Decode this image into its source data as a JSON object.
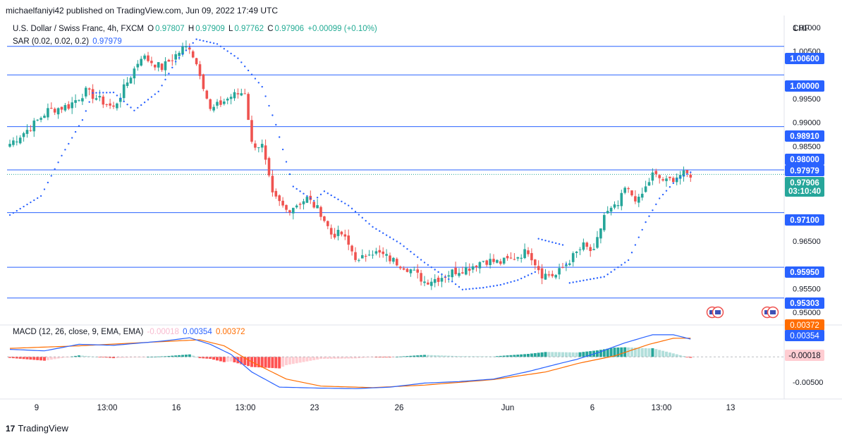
{
  "publisher": "michaelfaniyi42 published on TradingView.com, Jun 09, 2022 17:49 UTC",
  "header": {
    "symbol": "U.S. Dollar / Swiss Franc, 4h, FXCM",
    "o_label": "O",
    "o": "0.97807",
    "h_label": "H",
    "h": "0.97909",
    "l_label": "L",
    "l": "0.97762",
    "c_label": "C",
    "c": "0.97906",
    "change": "+0.00099 (+0.10%)",
    "sar_label": "SAR (0.02, 0.02, 0.2)",
    "sar_value": "0.97979"
  },
  "macd_header": {
    "label": "MACD (12, 26, close, 9, EMA, EMA)",
    "hist": "-0.00018",
    "macd": "0.00354",
    "signal": "0.00372"
  },
  "currency": "CHF",
  "footer": {
    "logo": "17",
    "brand": "TradingView"
  },
  "colors": {
    "up": "#26a69a",
    "down": "#ef5350",
    "level": "#2962ff",
    "sar": "#2962ff",
    "macd": "#2962ff",
    "signal": "#ff6d00",
    "hist_up_strong": "#26a69a",
    "hist_up_weak": "#b2dfdb",
    "hist_down_strong": "#ff5252",
    "hist_down_weak": "#ffcdd2"
  },
  "chart_data": {
    "type": "candlestick",
    "price_axis_ticks": [
      "1.01000",
      "1.00500",
      "0.99500",
      "0.99000",
      "0.98500",
      "0.98000",
      "0.97500",
      "0.96500",
      "0.95500",
      "0.95000"
    ],
    "price_ylim": [
      0.9475,
      1.0125
    ],
    "horizontal_levels": [
      "1.00600",
      "1.00000",
      "0.98910",
      "0.98000",
      "0.97100",
      "0.95950",
      "0.95303"
    ],
    "highlighted_labels": [
      {
        "text": "1.00600",
        "value": 1.006
      },
      {
        "text": "1.00000",
        "value": 1.0
      },
      {
        "text": "0.98910",
        "value": 0.9891
      },
      {
        "text": "0.98000",
        "value": 0.98
      },
      {
        "text": "0.97979",
        "value": 0.97979
      },
      {
        "text": "0.97906",
        "value": 0.97906
      },
      {
        "text": "03:10:40",
        "value": 0.97906
      },
      {
        "text": "0.97100",
        "value": 0.971
      },
      {
        "text": "0.95950",
        "value": 0.9595
      },
      {
        "text": "0.95303",
        "value": 0.95303
      }
    ],
    "last_price": 0.97906,
    "x_ticks": [
      "9",
      "13:00",
      "16",
      "13:00",
      "23",
      "26",
      "Jun",
      "6",
      "13:00",
      "13"
    ],
    "macd_axis_ticks": [
      "-0.00500"
    ],
    "macd_ylim": [
      -0.0078,
      0.0062
    ],
    "macd_labels": [
      {
        "text": "0.00372",
        "value": 0.00372,
        "series": "signal"
      },
      {
        "text": "0.00354",
        "value": 0.00354,
        "series": "macd"
      },
      {
        "text": "-0.00018",
        "value": -0.00018,
        "series": "hist"
      }
    ],
    "close_anchors": [
      [
        0,
        0.9855
      ],
      [
        6,
        0.989
      ],
      [
        11,
        0.9925
      ],
      [
        17,
        0.9935
      ],
      [
        22,
        0.9965
      ],
      [
        30,
        0.993
      ],
      [
        34,
        0.9985
      ],
      [
        38,
        1.004
      ],
      [
        44,
        1.0015
      ],
      [
        50,
        1.0055
      ],
      [
        52,
        1.006
      ],
      [
        55,
        1.0005
      ],
      [
        58,
        0.9925
      ],
      [
        64,
        0.9955
      ],
      [
        68,
        0.9965
      ],
      [
        70,
        0.9855
      ],
      [
        73,
        0.985
      ],
      [
        76,
        0.9745
      ],
      [
        80,
        0.9715
      ],
      [
        86,
        0.974
      ],
      [
        90,
        0.971
      ],
      [
        93,
        0.9665
      ],
      [
        96,
        0.9665
      ],
      [
        101,
        0.9605
      ],
      [
        104,
        0.963
      ],
      [
        108,
        0.962
      ],
      [
        112,
        0.9605
      ],
      [
        116,
        0.959
      ],
      [
        120,
        0.9565
      ],
      [
        124,
        0.9572
      ],
      [
        128,
        0.9585
      ],
      [
        133,
        0.9595
      ],
      [
        137,
        0.961
      ],
      [
        142,
        0.9605
      ],
      [
        146,
        0.9615
      ],
      [
        150,
        0.963
      ],
      [
        154,
        0.958
      ],
      [
        158,
        0.9578
      ],
      [
        162,
        0.961
      ],
      [
        166,
        0.964
      ],
      [
        169,
        0.9625
      ],
      [
        172,
        0.9705
      ],
      [
        176,
        0.9725
      ],
      [
        178,
        0.976
      ],
      [
        182,
        0.9735
      ],
      [
        186,
        0.979
      ],
      [
        190,
        0.9775
      ],
      [
        194,
        0.979
      ],
      [
        197,
        0.979
      ]
    ],
    "sar_anchors": [
      [
        0,
        0.9705
      ],
      [
        9,
        0.9745
      ],
      [
        15,
        0.983
      ],
      [
        21,
        0.9905
      ],
      [
        24,
        0.9962
      ],
      [
        30,
        0.9963
      ],
      [
        36,
        0.9925
      ],
      [
        43,
        0.9965
      ],
      [
        48,
        1.0028
      ],
      [
        54,
        1.0075
      ],
      [
        60,
        1.0065
      ],
      [
        66,
        1.0035
      ],
      [
        73,
        0.9975
      ],
      [
        77,
        0.9895
      ],
      [
        82,
        0.9765
      ],
      [
        88,
        0.9735
      ],
      [
        91,
        0.9755
      ],
      [
        98,
        0.9725
      ],
      [
        105,
        0.968
      ],
      [
        113,
        0.9645
      ],
      [
        120,
        0.9605
      ],
      [
        128,
        0.9565
      ],
      [
        131,
        0.9548
      ],
      [
        137,
        0.9552
      ],
      [
        142,
        0.9558
      ],
      [
        147,
        0.9568
      ],
      [
        152,
        0.9585
      ],
      [
        153,
        0.9655
      ],
      [
        160,
        0.9642
      ],
      [
        162,
        0.9562
      ],
      [
        172,
        0.9575
      ],
      [
        179,
        0.961
      ],
      [
        184,
        0.969
      ],
      [
        188,
        0.974
      ],
      [
        193,
        0.978
      ],
      [
        197,
        0.9795
      ]
    ],
    "macd_anchors": [
      [
        0,
        0.0015
      ],
      [
        10,
        0.0012
      ],
      [
        20,
        0.0025
      ],
      [
        30,
        0.0023
      ],
      [
        45,
        0.0032
      ],
      [
        52,
        0.0038
      ],
      [
        58,
        0.0025
      ],
      [
        64,
        0.0005
      ],
      [
        70,
        -0.003
      ],
      [
        78,
        -0.006
      ],
      [
        90,
        -0.0062
      ],
      [
        100,
        -0.0063
      ],
      [
        110,
        -0.006
      ],
      [
        120,
        -0.0052
      ],
      [
        130,
        -0.0049
      ],
      [
        140,
        -0.0044
      ],
      [
        150,
        -0.0029
      ],
      [
        158,
        -0.0015
      ],
      [
        164,
        -0.0005
      ],
      [
        170,
        0.0008
      ],
      [
        178,
        0.0028
      ],
      [
        186,
        0.0044
      ],
      [
        192,
        0.0044
      ],
      [
        197,
        0.00354
      ]
    ],
    "signal_anchors": [
      [
        0,
        0.0017
      ],
      [
        20,
        0.0022
      ],
      [
        40,
        0.0029
      ],
      [
        55,
        0.0034
      ],
      [
        62,
        0.0022
      ],
      [
        70,
        -0.001
      ],
      [
        80,
        -0.0044
      ],
      [
        90,
        -0.0058
      ],
      [
        105,
        -0.0061
      ],
      [
        120,
        -0.0056
      ],
      [
        140,
        -0.0045
      ],
      [
        155,
        -0.003
      ],
      [
        165,
        -0.0012
      ],
      [
        175,
        0.0002
      ],
      [
        185,
        0.0025
      ],
      [
        192,
        0.0037
      ],
      [
        197,
        0.00372
      ]
    ]
  }
}
